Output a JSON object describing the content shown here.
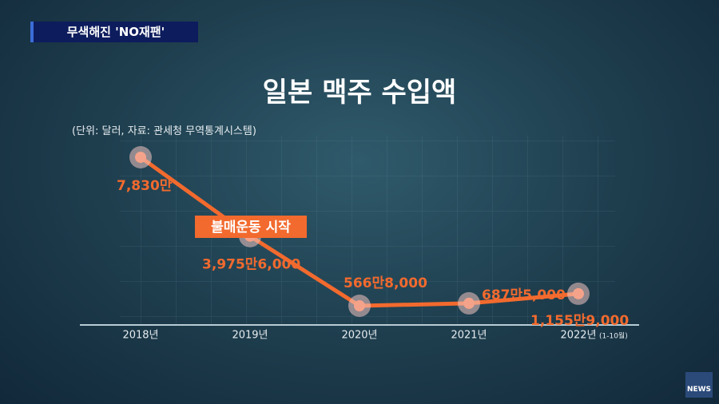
{
  "banner": "무색해진 'NO재팬'",
  "logo": "NEWS",
  "chart_data": {
    "type": "line",
    "title": "일본 맥주 수입액",
    "subtitle": "(단위: 달러, 자료: 관세청 무역통계시스템)",
    "annotation": "불매운동 시작",
    "categories": [
      "2018년",
      "2019년",
      "2020년",
      "2021년",
      "2022년"
    ],
    "category_note": "(1-10월)",
    "series": [
      {
        "color": "#f26a2e",
        "values": [
          78300000,
          39756000,
          5668000,
          6875000,
          11559000
        ],
        "value_labels": [
          "7,830만",
          "3,975만6,000",
          "566만8,000",
          "687만5,000",
          "1,155만9,000"
        ]
      }
    ]
  }
}
